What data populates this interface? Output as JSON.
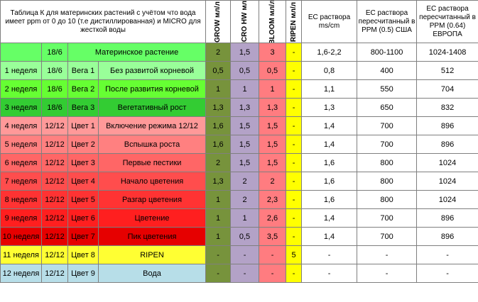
{
  "header": {
    "title": "Таблица К для материнских растений с учётом что вода имеет ppm от 0 до 10 (т.е дистиллированная) и MICRO для жесткой воды",
    "grow": "GROW мл/л",
    "micro": "MICRO HW мл/л",
    "bloom": "BLOOM мл/л",
    "ripen": "RIPEN мл/л",
    "ec": "ЕС раствора ms/cm",
    "usa": "ЕС раствора пересчитанный в PPM (0.5) США",
    "europe": "ЕС раствора пересчитанный в PPM (0.64) ЕВРОПА"
  },
  "colors": {
    "mother": "#66ff66",
    "veg1": "#99ff99",
    "veg2": "#66ff33",
    "veg3": "#33cc33",
    "bloom1": "#ff9999",
    "bloom2": "#ff8080",
    "bloom3": "#ff6666",
    "bloom4": "#ff4d4d",
    "bloom5": "#ff3333",
    "bloom6": "#ff1f1f",
    "bloom7": "#e60000",
    "ripen_row": "#ffff33",
    "water": "#b7dee8"
  },
  "rows": [
    {
      "week": "",
      "light": "18/6",
      "stage": "",
      "desc": "Материнское растение",
      "grow": "2",
      "micro": "1,5",
      "bloom": "3",
      "ripen": "-",
      "ec": "1,6-2,2",
      "usa": "800-1100",
      "europe": "1024-1408"
    },
    {
      "week": "1 неделя",
      "light": "18/6",
      "stage": "Вега 1",
      "desc": "Без развитой корневой",
      "grow": "0,5",
      "micro": "0,5",
      "bloom": "0,5",
      "ripen": "-",
      "ec": "0,8",
      "usa": "400",
      "europe": "512"
    },
    {
      "week": "2 неделя",
      "light": "18/6",
      "stage": "Вега 2",
      "desc": "После развития корневой",
      "grow": "1",
      "micro": "1",
      "bloom": "1",
      "ripen": "-",
      "ec": "1,1",
      "usa": "550",
      "europe": "704"
    },
    {
      "week": "3 неделя",
      "light": "18/6",
      "stage": "Вега 3",
      "desc": "Вегетативный рост",
      "grow": "1,3",
      "micro": "1,3",
      "bloom": "1,3",
      "ripen": "-",
      "ec": "1,3",
      "usa": "650",
      "europe": "832"
    },
    {
      "week": "4 неделя",
      "light": "12/12",
      "stage": "Цвет 1",
      "desc": "Включение режима 12/12",
      "grow": "1,6",
      "micro": "1,5",
      "bloom": "1,5",
      "ripen": "-",
      "ec": "1,4",
      "usa": "700",
      "europe": "896"
    },
    {
      "week": "5 неделя",
      "light": "12/12",
      "stage": "Цвет 2",
      "desc": "Вспышка роста",
      "grow": "1,6",
      "micro": "1,5",
      "bloom": "1,5",
      "ripen": "-",
      "ec": "1,4",
      "usa": "700",
      "europe": "896"
    },
    {
      "week": "6 неделя",
      "light": "12/12",
      "stage": "Цвет 3",
      "desc": "Первые пестики",
      "grow": "2",
      "micro": "1,5",
      "bloom": "1,5",
      "ripen": "-",
      "ec": "1,6",
      "usa": "800",
      "europe": "1024"
    },
    {
      "week": "7 неделя",
      "light": "12/12",
      "stage": "Цвет 4",
      "desc": "Начало цветения",
      "grow": "1,3",
      "micro": "2",
      "bloom": "2",
      "ripen": "-",
      "ec": "1,6",
      "usa": "800",
      "europe": "1024"
    },
    {
      "week": "8 неделя",
      "light": "12/12",
      "stage": "Цвет 5",
      "desc": "Разгар цветения",
      "grow": "1",
      "micro": "2",
      "bloom": "2,3",
      "ripen": "-",
      "ec": "1,6",
      "usa": "800",
      "europe": "1024"
    },
    {
      "week": "9 неделя",
      "light": "12/12",
      "stage": "Цвет 6",
      "desc": "Цветение",
      "grow": "1",
      "micro": "1",
      "bloom": "2,6",
      "ripen": "-",
      "ec": "1,4",
      "usa": "700",
      "europe": "896"
    },
    {
      "week": "10 неделя",
      "light": "12/12",
      "stage": "Цвет 7",
      "desc": "Пик цветения",
      "grow": "1",
      "micro": "0,5",
      "bloom": "3,5",
      "ripen": "-",
      "ec": "1,4",
      "usa": "700",
      "europe": "896"
    },
    {
      "week": "11 неделя",
      "light": "12/12",
      "stage": "Цвет 8",
      "desc": "RIPEN",
      "grow": "-",
      "micro": "-",
      "bloom": "-",
      "ripen": "5",
      "ec": "-",
      "usa": "-",
      "europe": "-"
    },
    {
      "week": "12 неделя",
      "light": "12/12",
      "stage": "Цвет 9",
      "desc": "Вода",
      "grow": "-",
      "micro": "-",
      "bloom": "-",
      "ripen": "-",
      "ec": "-",
      "usa": "-",
      "europe": "-"
    }
  ]
}
